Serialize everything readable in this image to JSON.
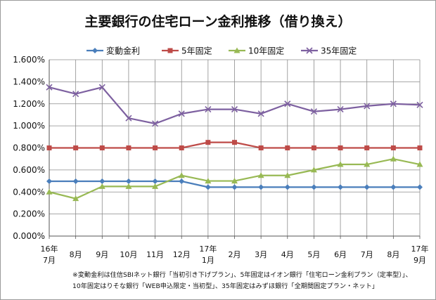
{
  "chart_data": {
    "type": "line",
    "title": "主要銀行の住宅ローン金利推移（借り換え）",
    "categories": [
      [
        "16年",
        "7月"
      ],
      [
        "",
        "8月"
      ],
      [
        "",
        "9月"
      ],
      [
        "",
        "10月"
      ],
      [
        "",
        "11月"
      ],
      [
        "",
        "12月"
      ],
      [
        "17年",
        "1月"
      ],
      [
        "",
        "2月"
      ],
      [
        "",
        "3月"
      ],
      [
        "",
        "4月"
      ],
      [
        "",
        "5月"
      ],
      [
        "",
        "6月"
      ],
      [
        "",
        "7月"
      ],
      [
        "",
        "8月"
      ],
      [
        "17年",
        "9月"
      ]
    ],
    "ylim": [
      0,
      1.6
    ],
    "yticks": [
      0.0,
      0.2,
      0.4,
      0.6,
      0.8,
      1.0,
      1.2,
      1.4,
      1.6
    ],
    "ytick_labels": [
      "0.000%",
      "0.200%",
      "0.400%",
      "0.600%",
      "0.800%",
      "1.000%",
      "1.200%",
      "1.400%",
      "1.600%"
    ],
    "grid": true,
    "legend_position": "top",
    "series": [
      {
        "name": "変動金利",
        "color": "#4a7ebb",
        "marker": "diamond",
        "values": [
          0.497,
          0.497,
          0.497,
          0.497,
          0.497,
          0.497,
          0.444,
          0.444,
          0.444,
          0.444,
          0.444,
          0.444,
          0.444,
          0.444,
          0.444
        ]
      },
      {
        "name": "5年固定",
        "color": "#be4b48",
        "marker": "square",
        "values": [
          0.8,
          0.8,
          0.8,
          0.8,
          0.8,
          0.8,
          0.85,
          0.85,
          0.8,
          0.8,
          0.8,
          0.8,
          0.8,
          0.8,
          0.8
        ]
      },
      {
        "name": "10年固定",
        "color": "#98b954",
        "marker": "triangle",
        "values": [
          0.4,
          0.34,
          0.45,
          0.45,
          0.45,
          0.55,
          0.5,
          0.5,
          0.55,
          0.55,
          0.6,
          0.65,
          0.65,
          0.7,
          0.65
        ]
      },
      {
        "name": "35年固定",
        "color": "#7d60a0",
        "marker": "x",
        "values": [
          1.35,
          1.29,
          1.35,
          1.07,
          1.02,
          1.11,
          1.15,
          1.15,
          1.11,
          1.2,
          1.13,
          1.15,
          1.18,
          1.2,
          1.19
        ]
      }
    ],
    "notes": [
      "※変動金利は住信SBIネット銀行「当初引き下げプラン」、5年固定はイオン銀行「住宅ローン金利プラン（定率型）」、",
      "10年固定はりそな銀行「WEB申込限定・当初型」、35年固定はみずほ銀行「全期間固定プラン・ネット」"
    ]
  }
}
